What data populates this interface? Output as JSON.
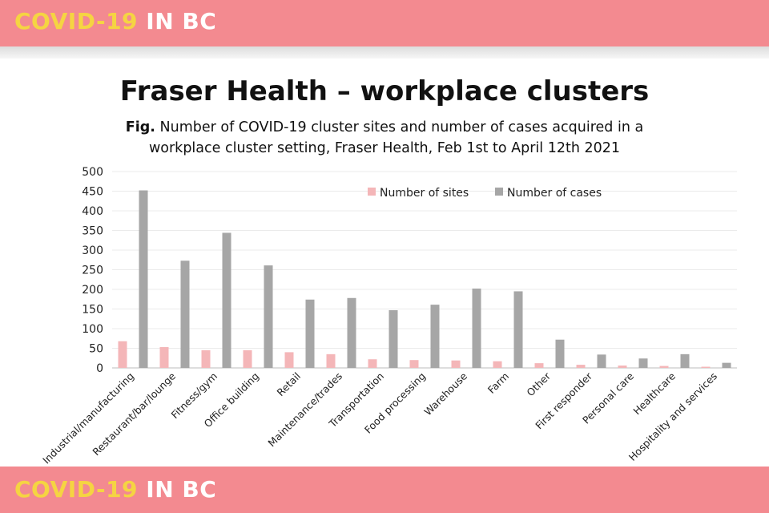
{
  "banner": {
    "brand_highlight": "COVID-19",
    "brand_rest": "IN BC"
  },
  "header": {
    "title": "Fraser Health – workplace clusters",
    "fig_label": "Fig.",
    "subtitle": "Number of COVID-19 cluster sites and number of cases acquired in a workplace cluster setting, Fraser Health, Feb 1st to April 12th 2021"
  },
  "colors": {
    "banner": "#f38a90",
    "brand_highlight": "#f5d442",
    "sites": "#f4b6b8",
    "cases": "#a6a6a6"
  },
  "chart_data": {
    "type": "bar",
    "title": "",
    "xlabel": "",
    "ylabel": "",
    "ylim": [
      0,
      500
    ],
    "yticks": [
      0,
      50,
      100,
      150,
      200,
      250,
      300,
      350,
      400,
      450,
      500
    ],
    "grid": true,
    "legend_position": "top-right",
    "categories": [
      "Industrial/manufacturing",
      "Restaurant/bar/lounge",
      "Fitness/gym",
      "Office building",
      "Retail",
      "Maintenance/trades",
      "Transportation",
      "Food processing",
      "Warehouse",
      "Farm",
      "Other",
      "First responder",
      "Personal care",
      "Healthcare",
      "Hospitality and services"
    ],
    "series": [
      {
        "name": "Number of sites",
        "color": "#f4b6b8",
        "values": [
          68,
          53,
          45,
          45,
          40,
          35,
          22,
          20,
          19,
          17,
          12,
          8,
          6,
          5,
          3
        ]
      },
      {
        "name": "Number of cases",
        "color": "#a6a6a6",
        "values": [
          452,
          273,
          344,
          261,
          174,
          178,
          147,
          161,
          202,
          195,
          72,
          34,
          24,
          35,
          13
        ]
      }
    ]
  }
}
